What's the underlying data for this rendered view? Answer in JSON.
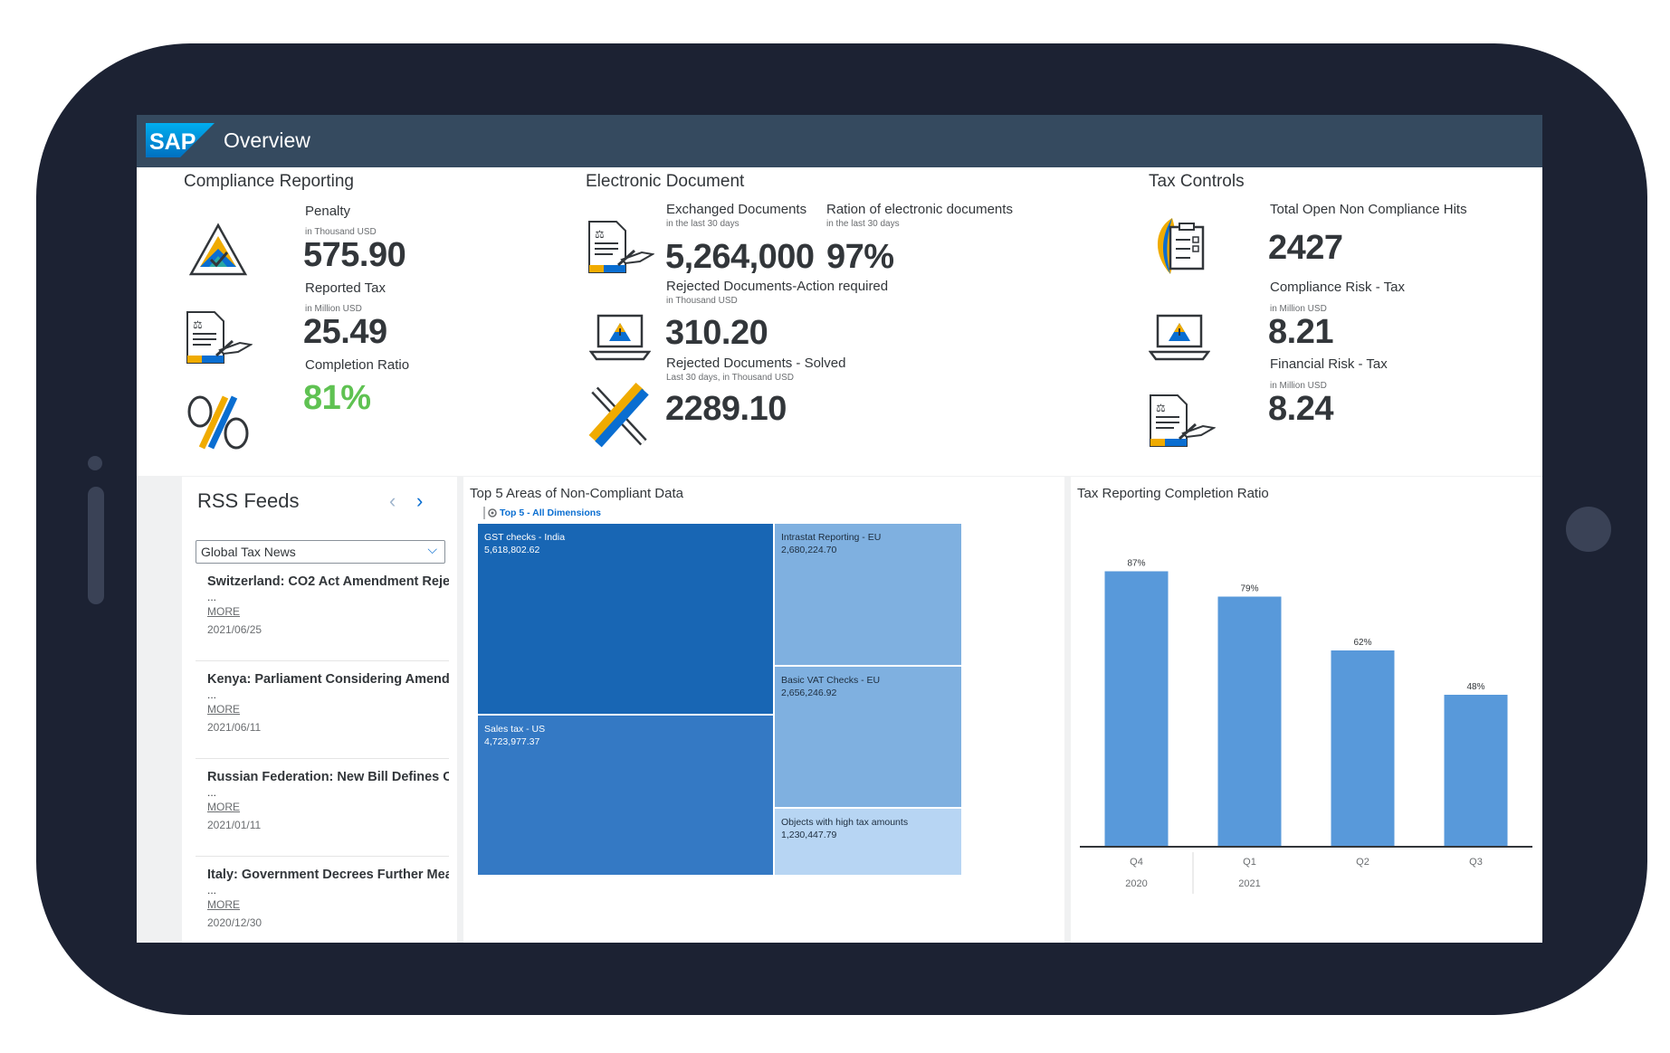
{
  "shell": {
    "logo_text": "SAP",
    "title": "Overview"
  },
  "colors": {
    "shell": "#354a5f",
    "accent": "#0a6ed1",
    "good": "#5fc252",
    "bar": "#5899da"
  },
  "compliance": {
    "title": "Compliance Reporting",
    "kpis": [
      {
        "label": "Penalty",
        "sub": "in Thousand USD",
        "value": "575.90",
        "icon": "triangle-check-icon"
      },
      {
        "label": "Reported Tax",
        "sub": "in Million USD",
        "value": "25.49",
        "icon": "signed-document-icon"
      },
      {
        "label": "Completion Ratio",
        "sub": "",
        "value": "81%",
        "icon": "percent-icon"
      }
    ]
  },
  "electronic": {
    "title": "Electronic Document",
    "kpis": [
      {
        "label": "Exchanged Documents",
        "sub": "in the last 30 days",
        "value": "5,264,000",
        "icon": "signed-document-icon"
      },
      {
        "label": "Ration of electronic documents",
        "sub": "in the last 30 days",
        "value": "97%"
      },
      {
        "label": "Rejected Documents-Action required",
        "sub": "in Thousand USD",
        "value": "310.20",
        "icon": "laptop-warning-icon"
      },
      {
        "label": "Rejected Documents - Solved",
        "sub": "Last 30 days, in Thousand USD",
        "value": "2289.10",
        "icon": "cross-icon"
      }
    ]
  },
  "tax_controls": {
    "title": "Tax Controls",
    "kpis": [
      {
        "label": "Total Open Non Compliance Hits",
        "sub": "",
        "value": "2427",
        "icon": "leaf-checklist-icon"
      },
      {
        "label": "Compliance Risk - Tax",
        "sub": "in Million USD",
        "value": "8.21",
        "icon": "laptop-warning-icon"
      },
      {
        "label": "Financial Risk - Tax",
        "sub": "in Million USD",
        "value": "8.24",
        "icon": "signed-document-icon"
      }
    ]
  },
  "rss": {
    "title": "RSS Feeds",
    "prev": "‹",
    "next": "›",
    "selected_feed": "Global Tax News",
    "more_label": "MORE",
    "ellipsis": "...",
    "items": [
      {
        "title": "Switzerland: CO2 Act Amendment Reje",
        "date": "2021/06/25"
      },
      {
        "title": "Kenya: Parliament Considering Amend",
        "date": "2021/06/11"
      },
      {
        "title": "Russian Federation: New Bill Defines C",
        "date": "2021/01/11"
      },
      {
        "title": "Italy: Government Decrees Further Mea",
        "date": "2020/12/30"
      }
    ]
  },
  "treemap": {
    "title": "Top 5 Areas of Non-Compliant Data",
    "subtitle": "Top 5 - All Dimensions",
    "tiles": [
      {
        "label": "GST checks - India",
        "value": "5,618,802.62",
        "color": "#1866b4"
      },
      {
        "label": "Sales tax - US",
        "value": "4,723,977.37",
        "color": "#3479c4"
      },
      {
        "label": "Intrastat Reporting - EU",
        "value": "2,680,224.70",
        "color": "#7fb0e0"
      },
      {
        "label": "Basic VAT Checks - EU",
        "value": "2,656,246.92",
        "color": "#7fb0e0"
      },
      {
        "label": "Objects with high tax amounts",
        "value": "1,230,447.79",
        "color": "#b7d5f3"
      }
    ]
  },
  "chart_data": {
    "type": "bar",
    "title": "Tax Reporting Completion Ratio",
    "categories": [
      "Q4",
      "Q1",
      "Q2",
      "Q3"
    ],
    "groups": [
      {
        "label": "2020",
        "span": 1
      },
      {
        "label": "2021",
        "span": 3
      }
    ],
    "values": [
      87,
      79,
      62,
      48
    ],
    "value_labels": [
      "87%",
      "79%",
      "62%",
      "48%"
    ],
    "ylim": [
      0,
      100
    ],
    "color": "#5899da"
  }
}
